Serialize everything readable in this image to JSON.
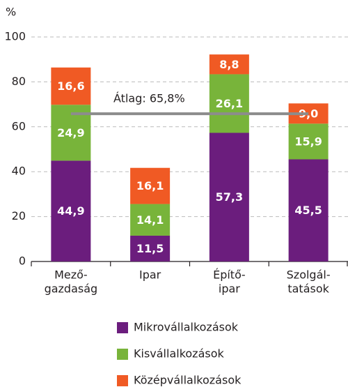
{
  "chart_data": {
    "type": "stacked_bar",
    "ylabel": "%",
    "categories": [
      [
        "Mező-",
        "gazdaság"
      ],
      [
        "Ipar"
      ],
      [
        "Építő-",
        "ipar"
      ],
      [
        "Szolgál-",
        "tatások"
      ]
    ],
    "series": [
      {
        "name": "Mikrovállalkozások",
        "color": "#6b1d7d",
        "values": [
          44.9,
          11.5,
          57.3,
          45.5
        ],
        "value_labels": [
          "44,9",
          "11,5",
          "57,3",
          "45,5"
        ]
      },
      {
        "name": "Kisvállalkozások",
        "color": "#78b43a",
        "values": [
          24.9,
          14.1,
          26.1,
          15.9
        ],
        "value_labels": [
          "24,9",
          "14,1",
          "26,1",
          "15,9"
        ]
      },
      {
        "name": "Középvállalkozások",
        "color": "#f05a24",
        "values": [
          16.6,
          16.1,
          8.8,
          9.0
        ],
        "value_labels": [
          "16,6",
          "16,1",
          "8,8",
          "9,0"
        ]
      }
    ],
    "average": {
      "value": 65.8,
      "label": "Átlag: 65,8%",
      "color": "#8c8c8c"
    },
    "ylim": [
      0,
      100
    ],
    "yticks": [
      0,
      20,
      40,
      60,
      80,
      100
    ],
    "grid": true
  }
}
